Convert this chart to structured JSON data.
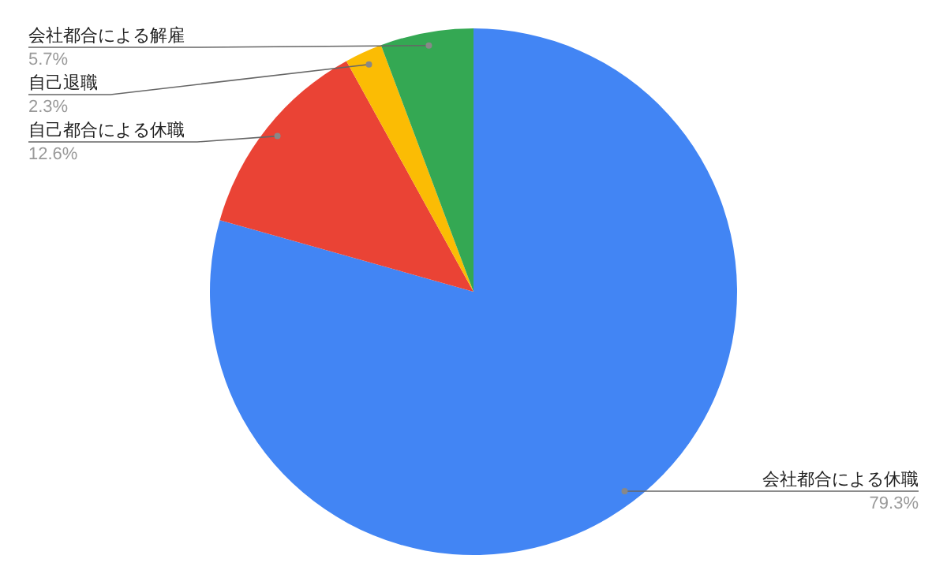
{
  "chart_data": {
    "type": "pie",
    "categories": [
      "会社都合による休職",
      "自己都合による休職",
      "自己退職",
      "会社都合による解雇"
    ],
    "values": [
      79.3,
      12.6,
      2.3,
      5.7
    ],
    "colors": [
      "#4285f4",
      "#ea4335",
      "#fbbc04",
      "#34a853"
    ],
    "value_labels": [
      "79.3%",
      "12.6%",
      "2.3%",
      "5.7%"
    ]
  }
}
